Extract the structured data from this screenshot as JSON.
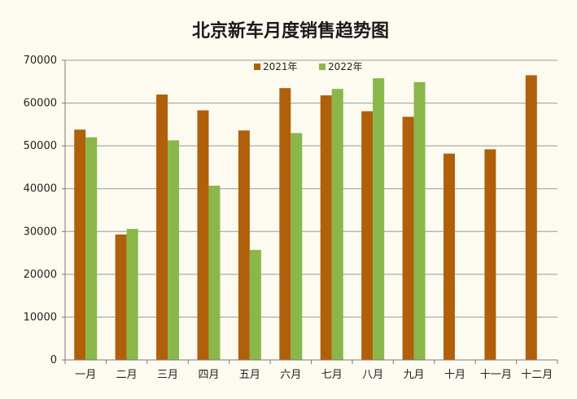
{
  "chart_data": {
    "type": "bar",
    "title": "北京新车月度销售趋势图",
    "categories": [
      "一月",
      "二月",
      "三月",
      "四月",
      "五月",
      "六月",
      "七月",
      "八月",
      "九月",
      "十月",
      "十一月",
      "十二月"
    ],
    "series": [
      {
        "name": "2021年",
        "color": "#b0600b",
        "values": [
          53800,
          29300,
          62000,
          58300,
          53600,
          63500,
          61800,
          58100,
          56800,
          48200,
          49200,
          66500
        ]
      },
      {
        "name": "2022年",
        "color": "#8ab74a",
        "values": [
          52000,
          30600,
          51300,
          40700,
          25700,
          53000,
          63300,
          65800,
          64900,
          null,
          null,
          null
        ]
      }
    ],
    "ylim": [
      0,
      70000
    ],
    "yticks": [
      "0",
      "10000",
      "20000",
      "30000",
      "40000",
      "50000",
      "60000",
      "70000"
    ],
    "grid": true,
    "legend_position": "top-center"
  }
}
